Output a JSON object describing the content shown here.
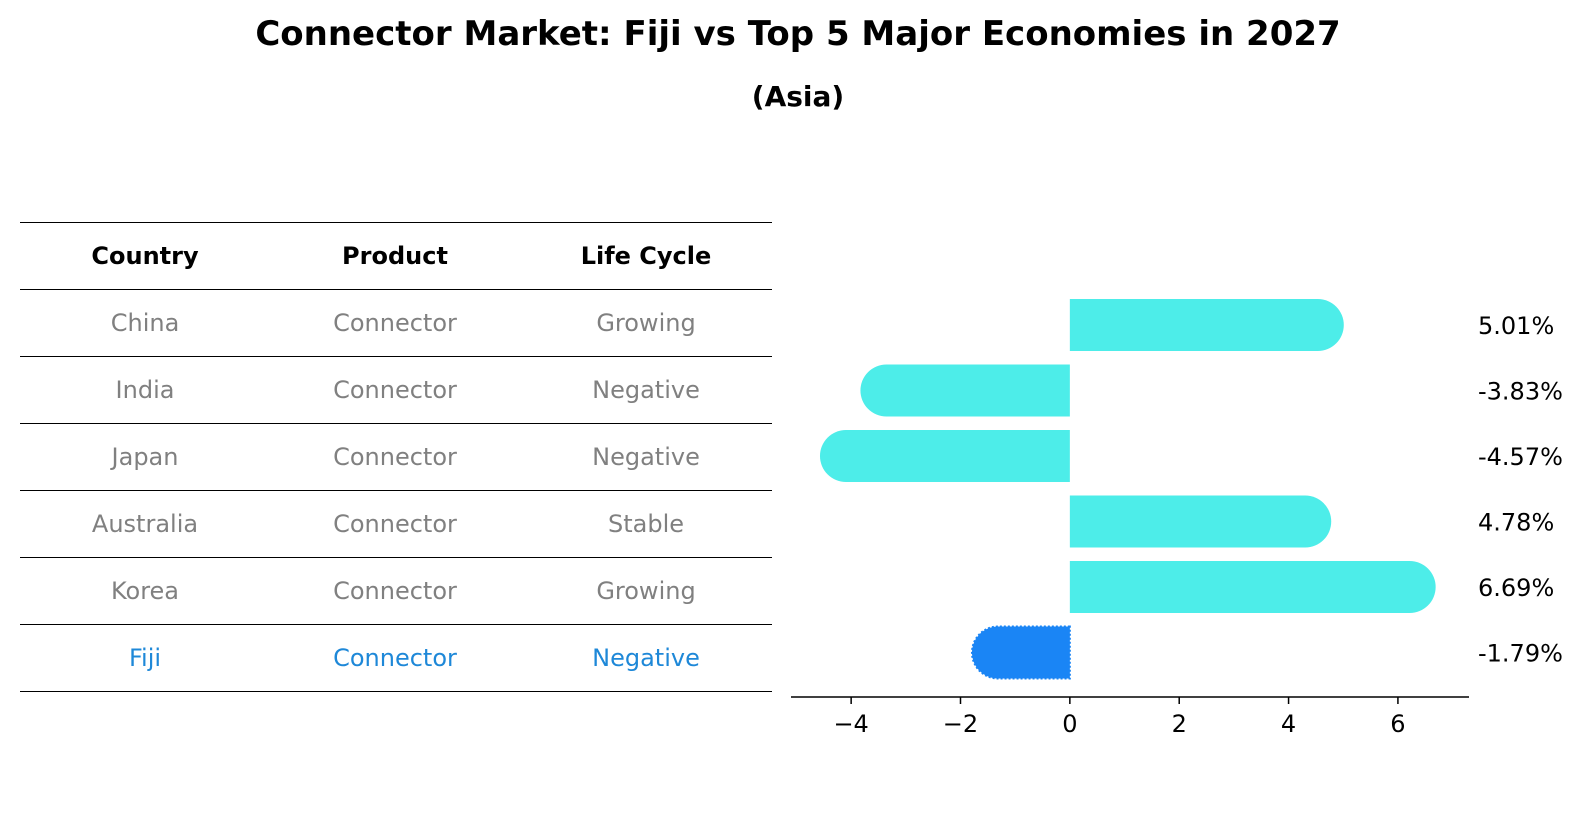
{
  "title": "Connector Market: Fiji vs Top 5 Major Economies in 2027",
  "subtitle": "(Asia)",
  "table": {
    "headers": [
      "Country",
      "Product",
      "Life Cycle"
    ],
    "rows": [
      [
        "China",
        "Connector",
        "Growing"
      ],
      [
        "India",
        "Connector",
        "Negative"
      ],
      [
        "Japan",
        "Connector",
        "Negative"
      ],
      [
        "Australia",
        "Connector",
        "Stable"
      ],
      [
        "Korea",
        "Connector",
        "Growing"
      ],
      [
        "Fiji",
        "Connector",
        "Negative"
      ]
    ],
    "highlight_row": 5
  },
  "colors": {
    "bar": "#4dede9",
    "highlight": "#1a85f5",
    "muted_text": "#808080",
    "highlight_text": "#1e88d8"
  },
  "chart_data": {
    "type": "bar",
    "orientation": "horizontal",
    "categories": [
      "China",
      "India",
      "Japan",
      "Australia",
      "Korea",
      "Fiji"
    ],
    "values": [
      5.01,
      -3.83,
      -4.57,
      4.78,
      6.69,
      -1.79
    ],
    "value_labels": [
      "5.01%",
      "-3.83%",
      "-4.57%",
      "4.78%",
      "6.69%",
      "-1.79%"
    ],
    "xticks": [
      "−4",
      "−2",
      "0",
      "2",
      "4",
      "6"
    ],
    "xtick_values": [
      -4,
      -2,
      0,
      2,
      4,
      6
    ],
    "xlim": [
      -5.1,
      7.3
    ],
    "grid": false,
    "highlight_index": 5
  }
}
